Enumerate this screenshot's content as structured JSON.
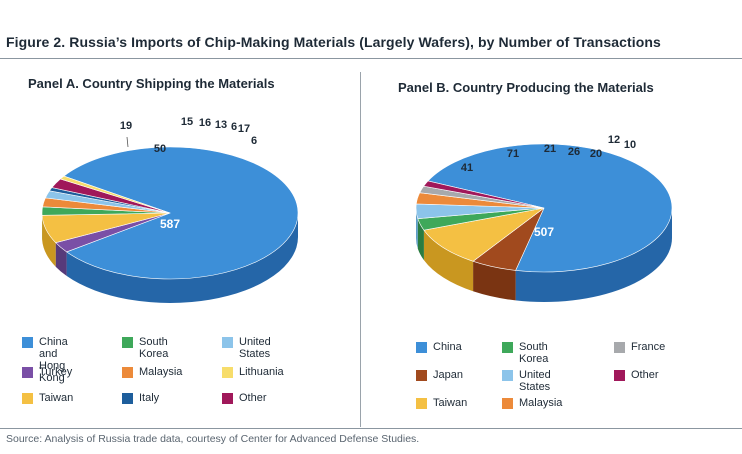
{
  "figure_title": "Figure 2. Russia’s Imports of Chip-Making Materials (Largely Wafers), by Number of Transactions",
  "source": "Source: Analysis of Russia trade data, courtesy of Center for Advanced Defense Studies.",
  "chart_data": [
    {
      "type": "pie",
      "title": "Panel A. Country Shipping the Materials",
      "slices": [
        {
          "label": "China and Hong Kong",
          "value": 587,
          "color": "#3d8fd8",
          "side": "#2566a8"
        },
        {
          "label": "Turkey",
          "value": 19,
          "color": "#7a4fa6",
          "side": "#573a7a"
        },
        {
          "label": "Taiwan",
          "value": 50,
          "color": "#f4c043",
          "side": "#c99720"
        },
        {
          "label": "South Korea",
          "value": 15,
          "color": "#3ea85a",
          "side": "#2b7c41"
        },
        {
          "label": "Malaysia",
          "value": 16,
          "color": "#ec8a3a",
          "side": "#b86620"
        },
        {
          "label": "United States",
          "value": 13,
          "color": "#8cc4ea",
          "side": "#5e9dc6"
        },
        {
          "label": "Italy",
          "value": 6,
          "color": "#1e5e9c",
          "side": "#134473"
        },
        {
          "label": "Other",
          "value": 17,
          "color": "#a0185a",
          "side": "#731040"
        },
        {
          "label": "Lithuania",
          "value": 6,
          "color": "#f7dd6b",
          "side": "#cfb440"
        }
      ],
      "legend": [
        "China and\nHong Kong",
        "South Korea",
        "United States",
        "Turkey",
        "Malaysia",
        "Lithuania",
        "Taiwan",
        "Italy",
        "Other"
      ]
    },
    {
      "type": "pie",
      "title": "Panel B. Country Producing the Materials",
      "slices": [
        {
          "label": "China",
          "value": 507,
          "color": "#3d8fd8",
          "side": "#2566a8"
        },
        {
          "label": "Japan",
          "value": 41,
          "color": "#a14a1e",
          "side": "#7a3412"
        },
        {
          "label": "Taiwan",
          "value": 71,
          "color": "#f4c043",
          "side": "#c99720"
        },
        {
          "label": "South Korea",
          "value": 21,
          "color": "#3ea85a",
          "side": "#2b7c41"
        },
        {
          "label": "United States",
          "value": 26,
          "color": "#8cc4ea",
          "side": "#5e9dc6"
        },
        {
          "label": "Malaysia",
          "value": 20,
          "color": "#ec8a3a",
          "side": "#b86620"
        },
        {
          "label": "France",
          "value": 12,
          "color": "#a7a9ac",
          "side": "#7b7d80"
        },
        {
          "label": "Other",
          "value": 10,
          "color": "#a0185a",
          "side": "#731040"
        }
      ],
      "legend": [
        "China",
        "South Korea",
        "France",
        "Japan",
        "United States",
        "Other",
        "Taiwan",
        "Malaysia"
      ]
    }
  ],
  "legend_colors": {
    "China and\nHong Kong": "#3d8fd8",
    "China": "#3d8fd8",
    "South Korea": "#3ea85a",
    "United States": "#8cc4ea",
    "Turkey": "#7a4fa6",
    "Malaysia": "#ec8a3a",
    "Lithuania": "#f7dd6b",
    "Taiwan": "#f4c043",
    "Italy": "#1e5e9c",
    "Other": "#a0185a",
    "France": "#a7a9ac",
    "Japan": "#a14a1e"
  }
}
